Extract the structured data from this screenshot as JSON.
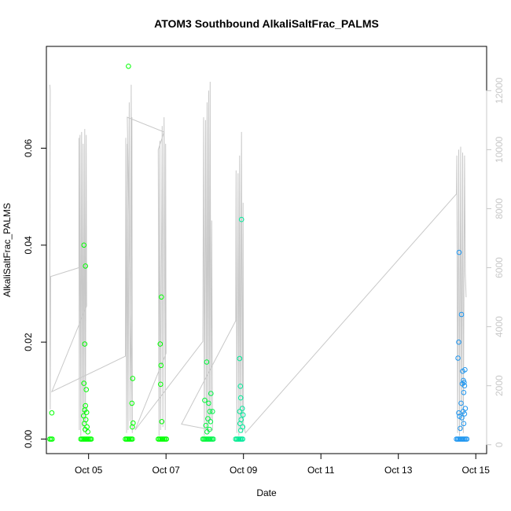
{
  "chart_data": {
    "type": "scatter",
    "title": "ATOM3 Southbound AlkaliSaltFrac_PALMS",
    "xlabel": "Date",
    "ylabel": "AlkaliSaltFrac_PALMS",
    "x_axis_type": "date",
    "x_range_days": [
      3.91,
      15.28
    ],
    "x_ticks": [
      {
        "label": "Oct 05",
        "day": 5
      },
      {
        "label": "Oct 07",
        "day": 7
      },
      {
        "label": "Oct 09",
        "day": 9
      },
      {
        "label": "Oct 11",
        "day": 11
      },
      {
        "label": "Oct 13",
        "day": 13
      },
      {
        "label": "Oct 15",
        "day": 15
      }
    ],
    "ylim": [
      -0.003,
      0.081
    ],
    "y_ticks": [
      {
        "label": "0.00",
        "value": 0.0
      },
      {
        "label": "0.02",
        "value": 0.02
      },
      {
        "label": "0.04",
        "value": 0.04
      },
      {
        "label": "0.06",
        "value": 0.06
      }
    ],
    "y2lim": [
      -300,
      13500
    ],
    "y2_ticks": [
      {
        "label": "0",
        "value": 0
      },
      {
        "label": "2000",
        "value": 2000
      },
      {
        "label": "4000",
        "value": 4000
      },
      {
        "label": "6000",
        "value": 6000
      },
      {
        "label": "8000",
        "value": 8000
      },
      {
        "label": "10000",
        "value": 10000
      },
      {
        "label": "12000",
        "value": 12000
      }
    ],
    "grid": false,
    "legend": "none",
    "colors": {
      "early": "#00ff00",
      "mid": "#00e8a0",
      "late": "#1e96f0",
      "line": "#c8c8c8"
    },
    "series": [
      {
        "type": "scatter",
        "points": [
          {
            "x": 4.0,
            "y": 0.0
          },
          {
            "x": 4.03,
            "y": 0.0
          },
          {
            "x": 4.06,
            "y": 0.0
          },
          {
            "x": 4.05,
            "y": 0.0054
          },
          {
            "x": 4.8,
            "y": 0.0
          },
          {
            "x": 4.83,
            "y": 0.0
          },
          {
            "x": 4.86,
            "y": 0.0
          },
          {
            "x": 4.89,
            "y": 0.0
          },
          {
            "x": 4.92,
            "y": 0.0
          },
          {
            "x": 4.95,
            "y": 0.0
          },
          {
            "x": 4.98,
            "y": 0.0
          },
          {
            "x": 5.01,
            "y": 0.0
          },
          {
            "x": 5.04,
            "y": 0.0
          },
          {
            "x": 5.07,
            "y": 0.0
          },
          {
            "x": 4.88,
            "y": 0.04
          },
          {
            "x": 4.92,
            "y": 0.0357
          },
          {
            "x": 4.9,
            "y": 0.0196
          },
          {
            "x": 4.88,
            "y": 0.0115
          },
          {
            "x": 4.94,
            "y": 0.0102
          },
          {
            "x": 4.92,
            "y": 0.0069
          },
          {
            "x": 4.9,
            "y": 0.006
          },
          {
            "x": 4.95,
            "y": 0.0055
          },
          {
            "x": 4.87,
            "y": 0.0048
          },
          {
            "x": 4.93,
            "y": 0.004
          },
          {
            "x": 4.89,
            "y": 0.0032
          },
          {
            "x": 4.96,
            "y": 0.0025
          },
          {
            "x": 4.91,
            "y": 0.002
          },
          {
            "x": 4.98,
            "y": 0.0015
          },
          {
            "x": 5.95,
            "y": 0.0
          },
          {
            "x": 5.98,
            "y": 0.0
          },
          {
            "x": 6.01,
            "y": 0.0
          },
          {
            "x": 6.04,
            "y": 0.0
          },
          {
            "x": 6.07,
            "y": 0.0
          },
          {
            "x": 6.1,
            "y": 0.0
          },
          {
            "x": 6.13,
            "y": 0.0
          },
          {
            "x": 6.03,
            "y": 0.0769
          },
          {
            "x": 6.14,
            "y": 0.0125
          },
          {
            "x": 6.12,
            "y": 0.0074
          },
          {
            "x": 6.15,
            "y": 0.0033
          },
          {
            "x": 6.13,
            "y": 0.0025
          },
          {
            "x": 6.8,
            "y": 0.0
          },
          {
            "x": 6.83,
            "y": 0.0
          },
          {
            "x": 6.86,
            "y": 0.0
          },
          {
            "x": 6.89,
            "y": 0.0
          },
          {
            "x": 6.92,
            "y": 0.0
          },
          {
            "x": 6.95,
            "y": 0.0
          },
          {
            "x": 6.98,
            "y": 0.0
          },
          {
            "x": 7.01,
            "y": 0.0
          },
          {
            "x": 6.88,
            "y": 0.0293
          },
          {
            "x": 6.85,
            "y": 0.0196
          },
          {
            "x": 6.87,
            "y": 0.0152
          },
          {
            "x": 6.86,
            "y": 0.0113
          },
          {
            "x": 6.89,
            "y": 0.0036
          }
        ]
      },
      {
        "type": "scatter",
        "points": [
          {
            "x": 7.95,
            "y": 0.0
          },
          {
            "x": 7.98,
            "y": 0.0
          },
          {
            "x": 8.01,
            "y": 0.0
          },
          {
            "x": 8.04,
            "y": 0.0
          },
          {
            "x": 8.07,
            "y": 0.0
          },
          {
            "x": 8.1,
            "y": 0.0
          },
          {
            "x": 8.13,
            "y": 0.0
          },
          {
            "x": 8.16,
            "y": 0.0
          },
          {
            "x": 8.19,
            "y": 0.0
          },
          {
            "x": 8.22,
            "y": 0.0
          },
          {
            "x": 8.05,
            "y": 0.0159
          },
          {
            "x": 8.16,
            "y": 0.0094
          },
          {
            "x": 8.0,
            "y": 0.008
          },
          {
            "x": 8.1,
            "y": 0.0074
          },
          {
            "x": 8.13,
            "y": 0.0057
          },
          {
            "x": 8.2,
            "y": 0.0057
          },
          {
            "x": 8.08,
            "y": 0.0042
          },
          {
            "x": 8.15,
            "y": 0.0036
          },
          {
            "x": 8.03,
            "y": 0.0028
          },
          {
            "x": 8.12,
            "y": 0.002
          },
          {
            "x": 8.06,
            "y": 0.0015
          },
          {
            "x": 8.8,
            "y": 0.0
          },
          {
            "x": 8.83,
            "y": 0.0
          },
          {
            "x": 8.86,
            "y": 0.0
          },
          {
            "x": 8.89,
            "y": 0.0
          },
          {
            "x": 8.92,
            "y": 0.0
          },
          {
            "x": 8.95,
            "y": 0.0
          },
          {
            "x": 8.98,
            "y": 0.0
          },
          {
            "x": 8.95,
            "y": 0.0453
          },
          {
            "x": 8.9,
            "y": 0.0166
          },
          {
            "x": 8.92,
            "y": 0.0109
          },
          {
            "x": 8.93,
            "y": 0.0085
          },
          {
            "x": 8.97,
            "y": 0.0063
          },
          {
            "x": 8.9,
            "y": 0.0057
          },
          {
            "x": 8.99,
            "y": 0.005
          },
          {
            "x": 8.94,
            "y": 0.004
          },
          {
            "x": 8.91,
            "y": 0.0032
          },
          {
            "x": 8.98,
            "y": 0.0025
          },
          {
            "x": 8.93,
            "y": 0.0018
          }
        ]
      },
      {
        "type": "scatter",
        "points": [
          {
            "x": 14.5,
            "y": 0.0
          },
          {
            "x": 14.53,
            "y": 0.0
          },
          {
            "x": 14.56,
            "y": 0.0
          },
          {
            "x": 14.59,
            "y": 0.0
          },
          {
            "x": 14.62,
            "y": 0.0
          },
          {
            "x": 14.65,
            "y": 0.0
          },
          {
            "x": 14.68,
            "y": 0.0
          },
          {
            "x": 14.71,
            "y": 0.0
          },
          {
            "x": 14.74,
            "y": 0.0
          },
          {
            "x": 14.77,
            "y": 0.0
          },
          {
            "x": 14.57,
            "y": 0.0385
          },
          {
            "x": 14.63,
            "y": 0.0257
          },
          {
            "x": 14.56,
            "y": 0.02
          },
          {
            "x": 14.54,
            "y": 0.0167
          },
          {
            "x": 14.72,
            "y": 0.0143
          },
          {
            "x": 14.66,
            "y": 0.014
          },
          {
            "x": 14.68,
            "y": 0.0121
          },
          {
            "x": 14.7,
            "y": 0.0117
          },
          {
            "x": 14.65,
            "y": 0.0114
          },
          {
            "x": 14.71,
            "y": 0.011
          },
          {
            "x": 14.69,
            "y": 0.0096
          },
          {
            "x": 14.62,
            "y": 0.0074
          },
          {
            "x": 14.73,
            "y": 0.0063
          },
          {
            "x": 14.67,
            "y": 0.0057
          },
          {
            "x": 14.56,
            "y": 0.0054
          },
          {
            "x": 14.71,
            "y": 0.0052
          },
          {
            "x": 14.58,
            "y": 0.0047
          },
          {
            "x": 14.64,
            "y": 0.0044
          },
          {
            "x": 14.69,
            "y": 0.0032
          },
          {
            "x": 14.6,
            "y": 0.0022
          }
        ]
      },
      {
        "type": "line",
        "axis": "right",
        "trace": [
          {
            "x": 4.0,
            "y": 12200
          },
          {
            "x": 4.01,
            "y": 12000
          },
          {
            "x": 4.0,
            "y": 5800
          },
          {
            "x": 4.01,
            "y": 1200
          },
          {
            "x": 4.02,
            "y": 5700
          },
          {
            "x": 4.75,
            "y": 6000
          },
          {
            "x": 4.75,
            "y": 10400
          },
          {
            "x": 4.76,
            "y": 500
          },
          {
            "x": 4.78,
            "y": 10500
          },
          {
            "x": 4.8,
            "y": 300
          },
          {
            "x": 4.82,
            "y": 10600
          },
          {
            "x": 4.84,
            "y": 600
          },
          {
            "x": 4.86,
            "y": 10200
          },
          {
            "x": 4.88,
            "y": 400
          },
          {
            "x": 4.9,
            "y": 10700
          },
          {
            "x": 4.92,
            "y": 700
          },
          {
            "x": 4.94,
            "y": 10500
          },
          {
            "x": 4.95,
            "y": 4700
          },
          {
            "x": 4.05,
            "y": 1800
          },
          {
            "x": 5.95,
            "y": 3000
          },
          {
            "x": 5.96,
            "y": 10400
          },
          {
            "x": 5.98,
            "y": 400
          },
          {
            "x": 6.0,
            "y": 10200
          },
          {
            "x": 6.02,
            "y": 500
          },
          {
            "x": 6.05,
            "y": 11600
          },
          {
            "x": 6.07,
            "y": 800
          },
          {
            "x": 6.1,
            "y": 12200
          },
          {
            "x": 6.12,
            "y": 600
          },
          {
            "x": 6.12,
            "y": 11100
          },
          {
            "x": 6.13,
            "y": 400
          },
          {
            "x": 6.0,
            "y": 11100
          },
          {
            "x": 6.95,
            "y": 10600
          },
          {
            "x": 6.8,
            "y": 10000
          },
          {
            "x": 6.82,
            "y": 300
          },
          {
            "x": 6.84,
            "y": 10300
          },
          {
            "x": 6.86,
            "y": 500
          },
          {
            "x": 6.9,
            "y": 10800
          },
          {
            "x": 6.92,
            "y": 600
          },
          {
            "x": 6.95,
            "y": 11100
          },
          {
            "x": 6.98,
            "y": 500
          },
          {
            "x": 6.99,
            "y": 10200
          },
          {
            "x": 7.0,
            "y": 3100
          },
          {
            "x": 6.2,
            "y": 500
          },
          {
            "x": 7.95,
            "y": 3500
          },
          {
            "x": 7.97,
            "y": 11100
          },
          {
            "x": 7.99,
            "y": 300
          },
          {
            "x": 8.02,
            "y": 11000
          },
          {
            "x": 8.04,
            "y": 500
          },
          {
            "x": 8.06,
            "y": 11600
          },
          {
            "x": 8.08,
            "y": 400
          },
          {
            "x": 8.1,
            "y": 12000
          },
          {
            "x": 8.12,
            "y": 700
          },
          {
            "x": 8.14,
            "y": 12300
          },
          {
            "x": 8.16,
            "y": 800
          },
          {
            "x": 8.18,
            "y": 7600
          },
          {
            "x": 8.2,
            "y": 500
          },
          {
            "x": 7.4,
            "y": 700
          },
          {
            "x": 8.8,
            "y": 4200
          },
          {
            "x": 8.81,
            "y": 9300
          },
          {
            "x": 8.83,
            "y": 400
          },
          {
            "x": 8.86,
            "y": 9200
          },
          {
            "x": 8.88,
            "y": 300
          },
          {
            "x": 8.9,
            "y": 9800
          },
          {
            "x": 8.92,
            "y": 500
          },
          {
            "x": 8.95,
            "y": 10600
          },
          {
            "x": 8.97,
            "y": 400
          },
          {
            "x": 8.99,
            "y": 8200
          },
          {
            "x": 9.0,
            "y": 700
          },
          {
            "x": 9.05,
            "y": 400
          },
          {
            "x": 14.5,
            "y": 8500
          },
          {
            "x": 14.51,
            "y": 9800
          },
          {
            "x": 14.53,
            "y": 400
          },
          {
            "x": 14.56,
            "y": 10000
          },
          {
            "x": 14.58,
            "y": 300
          },
          {
            "x": 14.61,
            "y": 10100
          },
          {
            "x": 14.63,
            "y": 500
          },
          {
            "x": 14.66,
            "y": 9900
          },
          {
            "x": 14.68,
            "y": 400
          },
          {
            "x": 14.71,
            "y": 9800
          },
          {
            "x": 14.73,
            "y": 5800
          },
          {
            "x": 14.75,
            "y": 5000
          }
        ]
      }
    ]
  }
}
